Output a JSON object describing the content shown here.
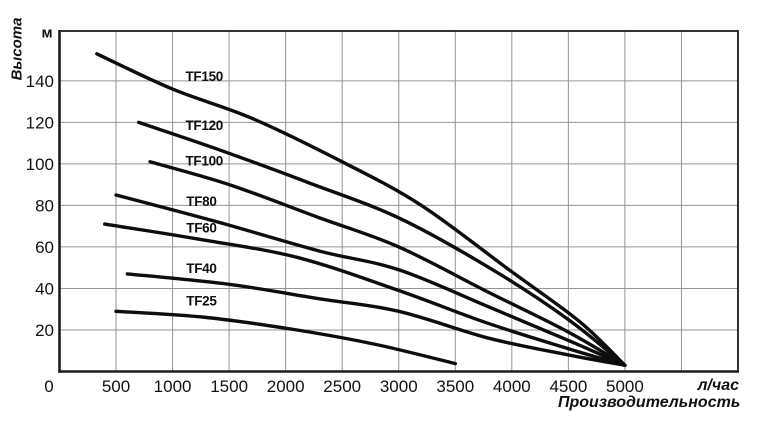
{
  "chart_data": {
    "type": "line",
    "title": "",
    "ylabel": "Высота",
    "y_unit": "м",
    "xlabel": "Производительность",
    "x_unit": "л/час",
    "xlim": [
      0,
      6000
    ],
    "ylim": [
      0,
      164
    ],
    "grid": true,
    "x_tick_labels": [
      0,
      500,
      1000,
      1500,
      2000,
      2500,
      3000,
      3500,
      4000,
      4500,
      5000
    ],
    "x_gridlines": [
      500,
      1000,
      1500,
      2000,
      2500,
      3000,
      3500,
      4000,
      4500,
      5000,
      5500
    ],
    "y_tick_labels": [
      20,
      40,
      60,
      80,
      100,
      120,
      140
    ],
    "colors": {
      "curve": "#0d0d0d",
      "grid": "#949494",
      "frame": "#1c1c1c",
      "text": "#111111"
    },
    "legend_position": "inline-labels-above-curves",
    "series": [
      {
        "name": "TF150",
        "label": "TF150",
        "label_at": [
          1280,
          142
        ],
        "points": [
          [
            330,
            153
          ],
          [
            1000,
            136
          ],
          [
            1700,
            122
          ],
          [
            2500,
            101
          ],
          [
            3200,
            80
          ],
          [
            4000,
            48
          ],
          [
            4600,
            24
          ],
          [
            5000,
            3
          ]
        ]
      },
      {
        "name": "TF120",
        "label": "TF120",
        "label_at": [
          1280,
          118.5
        ],
        "points": [
          [
            700,
            120
          ],
          [
            1400,
            107
          ],
          [
            2200,
            91
          ],
          [
            3000,
            74
          ],
          [
            3800,
            50
          ],
          [
            4500,
            25
          ],
          [
            5000,
            3
          ]
        ]
      },
      {
        "name": "TF100",
        "label": "TF100",
        "label_at": [
          1280,
          101.5
        ],
        "points": [
          [
            800,
            101
          ],
          [
            1500,
            90
          ],
          [
            2300,
            74
          ],
          [
            3000,
            60
          ],
          [
            3800,
            38
          ],
          [
            4500,
            19
          ],
          [
            5000,
            3
          ]
        ]
      },
      {
        "name": "TF80",
        "label": "TF80",
        "label_at": [
          1255,
          82
        ],
        "points": [
          [
            500,
            85
          ],
          [
            1400,
            72
          ],
          [
            2300,
            58
          ],
          [
            3000,
            49
          ],
          [
            3800,
            31
          ],
          [
            4500,
            15
          ],
          [
            5000,
            3
          ]
        ]
      },
      {
        "name": "TF60",
        "label": "TF60",
        "label_at": [
          1255,
          69
        ],
        "points": [
          [
            400,
            71
          ],
          [
            1200,
            64
          ],
          [
            2100,
            55
          ],
          [
            3000,
            39
          ],
          [
            3800,
            23
          ],
          [
            4500,
            11
          ],
          [
            5000,
            3
          ]
        ]
      },
      {
        "name": "TF40",
        "label": "TF40",
        "label_at": [
          1255,
          49.5
        ],
        "points": [
          [
            600,
            47
          ],
          [
            1500,
            42
          ],
          [
            2300,
            35
          ],
          [
            3000,
            29
          ],
          [
            3800,
            16
          ],
          [
            4500,
            8
          ],
          [
            5000,
            3
          ]
        ]
      },
      {
        "name": "TF25",
        "label": "TF25",
        "label_at": [
          1255,
          34
        ],
        "points": [
          [
            500,
            29
          ],
          [
            1300,
            26
          ],
          [
            2100,
            20
          ],
          [
            2800,
            13
          ],
          [
            3500,
            3.8
          ]
        ]
      }
    ]
  }
}
